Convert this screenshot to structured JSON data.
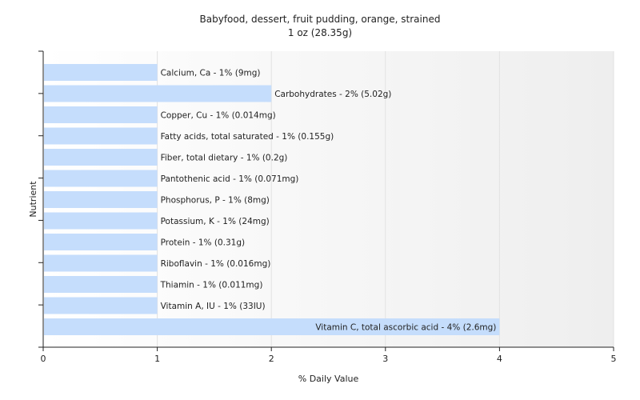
{
  "chart_data": {
    "type": "bar",
    "orientation": "horizontal",
    "title": "Babyfood, dessert, fruit pudding, orange, strained",
    "subtitle": "1 oz (28.35g)",
    "xlabel": "% Daily Value",
    "ylabel": "Nutrient",
    "xlim": [
      0,
      5
    ],
    "xticks": [
      "0",
      "1",
      "2",
      "3",
      "4",
      "5"
    ],
    "grid": "vertical",
    "bar_color": "#c5ddfc",
    "categories": [
      "Calcium, Ca",
      "Carbohydrates",
      "Copper, Cu",
      "Fatty acids, total saturated",
      "Fiber, total dietary",
      "Pantothenic acid",
      "Phosphorus, P",
      "Potassium, K",
      "Protein",
      "Riboflavin",
      "Thiamin",
      "Vitamin A, IU",
      "Vitamin C, total ascorbic acid"
    ],
    "values": [
      1,
      2,
      1,
      1,
      1,
      1,
      1,
      1,
      1,
      1,
      1,
      1,
      4
    ],
    "labels": [
      "Calcium, Ca - 1% (9mg)",
      "Carbohydrates - 2% (5.02g)",
      "Copper, Cu - 1% (0.014mg)",
      "Fatty acids, total saturated - 1% (0.155g)",
      "Fiber, total dietary - 1% (0.2g)",
      "Pantothenic acid - 1% (0.071mg)",
      "Phosphorus, P - 1% (8mg)",
      "Potassium, K - 1% (24mg)",
      "Protein - 1% (0.31g)",
      "Riboflavin - 1% (0.016mg)",
      "Thiamin - 1% (0.011mg)",
      "Vitamin A, IU - 1% (33IU)",
      "Vitamin C, total ascorbic acid - 4% (2.6mg)"
    ]
  }
}
